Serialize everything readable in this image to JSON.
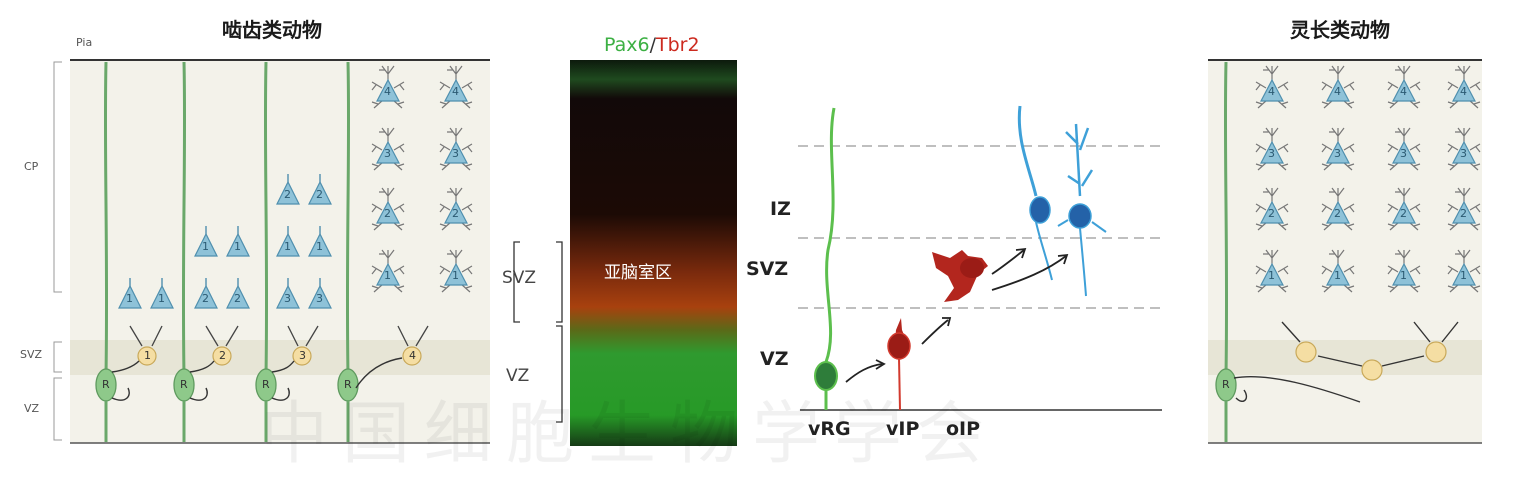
{
  "left_panel": {
    "title": "啮齿类动物",
    "pia_label": "Pia",
    "zone_labels": [
      "CP",
      "SVZ",
      "VZ"
    ],
    "radial_glia_label": "R",
    "ip_numbers": [
      "1",
      "2",
      "3",
      "4"
    ]
  },
  "micrograph": {
    "stain_green": "Pax6",
    "stain_separator": "/",
    "stain_red": "Tbr2",
    "center_label": "亚脑室区",
    "zone_labels": [
      "SVZ",
      "VZ"
    ],
    "colors": {
      "green": "#3cb043",
      "red": "#cc2a1f"
    }
  },
  "schematic": {
    "zone_labels": [
      "IZ",
      "SVZ",
      "VZ"
    ],
    "cell_labels": [
      "vRG",
      "vIP",
      "oIP"
    ]
  },
  "right_panel": {
    "title": "灵长类动物",
    "radial_glia_label": "R",
    "layer_numbers": [
      "4",
      "3",
      "2",
      "1"
    ]
  },
  "watermark": {
    "text": "中国细胞生物学学会"
  },
  "colors": {
    "neuron_blue": "#8ec2d8",
    "ip_yellow": "#f5dea3",
    "glia_green": "#8ec98a",
    "band": "#ecebdf"
  }
}
